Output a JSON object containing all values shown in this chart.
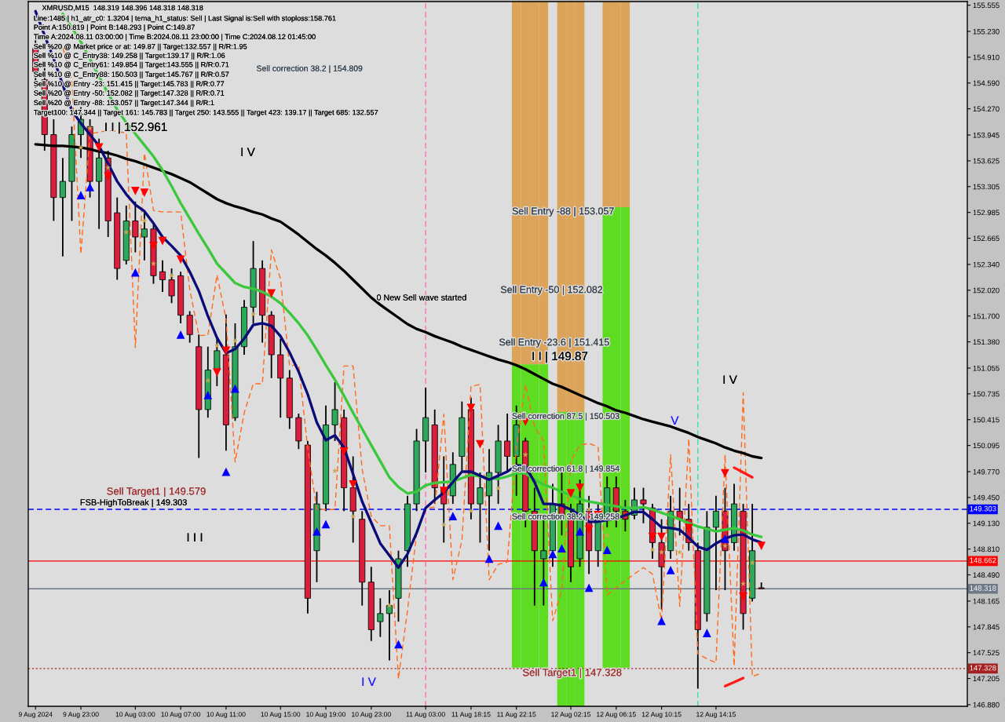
{
  "chart_data": {
    "type": "candlestick",
    "title": "XMRUSD,M15  148.319 148.396 148.318 148.318",
    "categories": [
      "9 Aug 2024",
      null,
      null,
      null,
      null,
      "9 Aug 23:00",
      null,
      null,
      null,
      null,
      null,
      "10 Aug 03:00",
      null,
      null,
      null,
      null,
      "10 Aug 07:00",
      null,
      null,
      null,
      null,
      "10 Aug 11:00",
      null,
      null,
      null,
      null,
      null,
      "10 Aug 15:00",
      null,
      null,
      null,
      null,
      "10 Aug 19:00",
      null,
      null,
      null,
      null,
      "10 Aug 23:00",
      null,
      null,
      null,
      null,
      null,
      "11 Aug 03:00",
      null,
      null,
      null,
      null,
      "11 Aug 18:15",
      null,
      null,
      null,
      null,
      "11 Aug 22:15",
      null,
      null,
      null,
      null,
      null,
      "12 Aug 02:15",
      null,
      null,
      null,
      null,
      "12 Aug 06:15",
      null,
      null,
      null,
      null,
      "12 Aug 10:15",
      null,
      null,
      null,
      null,
      null,
      "12 Aug 14:15",
      null,
      null,
      null,
      null,
      null
    ],
    "ohlc": [
      [
        155.02,
        155.21,
        154.53,
        154.73
      ],
      [
        154.63,
        154.82,
        153.75,
        153.95
      ],
      [
        153.95,
        154.14,
        152.88,
        153.17
      ],
      [
        153.17,
        153.66,
        152.44,
        153.37
      ],
      [
        153.37,
        154.05,
        152.88,
        153.95
      ],
      [
        153.95,
        154.29,
        153.66,
        154.14
      ],
      [
        154.05,
        154.14,
        153.17,
        153.37
      ],
      [
        153.37,
        153.9,
        152.78,
        153.66
      ],
      [
        153.66,
        153.75,
        152.68,
        152.88
      ],
      [
        152.98,
        153.17,
        152.15,
        152.29
      ],
      [
        152.39,
        153.07,
        152.34,
        152.88
      ],
      [
        152.88,
        153.12,
        152.49,
        152.68
      ],
      [
        152.68,
        152.98,
        152.39,
        152.78
      ],
      [
        152.78,
        152.83,
        152.1,
        152.2
      ],
      [
        152.25,
        152.39,
        152.0,
        152.15
      ],
      [
        152.15,
        152.29,
        151.86,
        151.95
      ],
      [
        152.2,
        152.25,
        151.61,
        151.71
      ],
      [
        151.71,
        151.76,
        151.37,
        151.47
      ],
      [
        151.32,
        151.47,
        149.94,
        150.54
      ],
      [
        150.54,
        151.32,
        150.44,
        151.03
      ],
      [
        151.03,
        151.42,
        150.83,
        151.27
      ],
      [
        151.22,
        151.72,
        150.03,
        150.35
      ],
      [
        150.44,
        151.61,
        150.4,
        151.32
      ],
      [
        151.32,
        151.9,
        151.22,
        151.81
      ],
      [
        151.81,
        152.63,
        151.61,
        152.29
      ],
      [
        152.29,
        152.39,
        151.37,
        151.71
      ],
      [
        151.71,
        151.76,
        150.93,
        151.22
      ],
      [
        151.22,
        151.42,
        150.44,
        150.93
      ],
      [
        150.93,
        151.03,
        150.3,
        150.44
      ],
      [
        150.44,
        150.49,
        150.05,
        150.15
      ],
      [
        150.1,
        150.15,
        148.01,
        148.2
      ],
      [
        148.79,
        149.52,
        148.4,
        149.37
      ],
      [
        149.37,
        150.59,
        149.28,
        150.35
      ],
      [
        150.35,
        150.88,
        150.15,
        150.54
      ],
      [
        150.44,
        150.54,
        149.28,
        149.57
      ],
      [
        149.57,
        149.96,
        148.89,
        149.28
      ],
      [
        149.18,
        149.28,
        148.11,
        148.4
      ],
      [
        148.4,
        148.59,
        147.67,
        147.81
      ],
      [
        147.91,
        148.2,
        147.72,
        148.01
      ],
      [
        148.01,
        148.3,
        147.43,
        148.11
      ],
      [
        148.2,
        148.79,
        147.91,
        148.69
      ],
      [
        148.79,
        149.47,
        148.59,
        149.37
      ],
      [
        149.37,
        150.3,
        149.28,
        150.15
      ],
      [
        150.15,
        150.81,
        149.76,
        150.44
      ],
      [
        150.35,
        150.54,
        149.37,
        149.57
      ],
      [
        149.57,
        149.96,
        148.89,
        149.37
      ],
      [
        149.47,
        150.01,
        149.37,
        149.86
      ],
      [
        149.96,
        150.64,
        149.76,
        150.44
      ],
      [
        150.54,
        150.69,
        149.18,
        149.37
      ],
      [
        149.37,
        149.76,
        148.89,
        149.57
      ],
      [
        149.47,
        150.05,
        148.79,
        149.76
      ],
      [
        149.76,
        150.35,
        149.37,
        150.15
      ],
      [
        150.15,
        150.49,
        149.76,
        149.96
      ],
      [
        149.96,
        150.59,
        149.47,
        150.35
      ],
      [
        150.15,
        150.19,
        149.08,
        149.28
      ],
      [
        149.28,
        149.57,
        148.11,
        148.79
      ],
      [
        148.69,
        149.18,
        148.11,
        148.79
      ],
      [
        148.79,
        149.62,
        148.59,
        149.37
      ],
      [
        149.37,
        149.76,
        148.98,
        149.18
      ],
      [
        149.18,
        149.37,
        148.4,
        148.59
      ],
      [
        148.69,
        149.67,
        148.59,
        149.37
      ],
      [
        149.28,
        149.47,
        148.5,
        148.79
      ],
      [
        148.79,
        149.37,
        148.59,
        149.18
      ],
      [
        149.18,
        149.71,
        149.08,
        149.57
      ],
      [
        149.57,
        149.71,
        149.08,
        149.28
      ],
      [
        149.28,
        149.42,
        149.03,
        149.18
      ],
      [
        149.23,
        149.57,
        149.18,
        149.42
      ],
      [
        149.42,
        149.57,
        149.13,
        149.37
      ],
      [
        149.32,
        149.37,
        148.69,
        148.89
      ],
      [
        148.89,
        149.18,
        148.06,
        148.59
      ],
      [
        148.79,
        149.47,
        148.69,
        149.28
      ],
      [
        149.28,
        149.57,
        148.98,
        149.18
      ],
      [
        149.18,
        149.37,
        148.79,
        148.89
      ],
      [
        148.79,
        148.89,
        147.08,
        147.81
      ],
      [
        148.01,
        149.28,
        147.91,
        149.08
      ],
      [
        149.08,
        149.47,
        148.3,
        149.28
      ],
      [
        149.28,
        149.57,
        148.3,
        148.79
      ],
      [
        148.89,
        149.62,
        148.79,
        149.37
      ],
      [
        149.28,
        149.37,
        147.81,
        148.01
      ],
      [
        148.2,
        149.37,
        148.16,
        148.79
      ],
      [
        148.319,
        148.396,
        148.318,
        148.318
      ]
    ],
    "colors": [
      "#dc1e3c",
      "#dc1e3c",
      "#dc1e3c",
      "#2ea85a",
      "#2ea85a",
      "#2ea85a",
      "#dc1e3c",
      "#2ea85a",
      "#dc1e3c",
      "#dc1e3c",
      "#2ea85a",
      "#dc1e3c",
      "#2ea85a",
      "#dc1e3c",
      "#dc1e3c",
      "#dc1e3c",
      "#dc1e3c",
      "#dc1e3c",
      "#dc1e3c",
      "#2ea85a",
      "#2ea85a",
      "#dc1e3c",
      "#2ea85a",
      "#2ea85a",
      "#2ea85a",
      "#dc1e3c",
      "#dc1e3c",
      "#dc1e3c",
      "#dc1e3c",
      "#dc1e3c",
      "#dc1e3c",
      "#2ea85a",
      "#2ea85a",
      "#2ea85a",
      "#dc1e3c",
      "#dc1e3c",
      "#dc1e3c",
      "#dc1e3c",
      "#2ea85a",
      "#2ea85a",
      "#2ea85a",
      "#2ea85a",
      "#2ea85a",
      "#2ea85a",
      "#dc1e3c",
      "#dc1e3c",
      "#2ea85a",
      "#2ea85a",
      "#dc1e3c",
      "#2ea85a",
      "#2ea85a",
      "#2ea85a",
      "#dc1e3c",
      "#2ea85a",
      "#dc1e3c",
      "#dc1e3c",
      "#2ea85a",
      "#2ea85a",
      "#dc1e3c",
      "#dc1e3c",
      "#2ea85a",
      "#dc1e3c",
      "#2ea85a",
      "#2ea85a",
      "#dc1e3c",
      "#dc1e3c",
      "#2ea85a",
      "#dc1e3c",
      "#dc1e3c",
      "#dc1e3c",
      "#2ea85a",
      "#dc1e3c",
      "#dc1e3c",
      "#dc1e3c",
      "#2ea85a",
      "#2ea85a",
      "#dc1e3c",
      "#2ea85a",
      "#dc1e3c",
      "#2ea85a",
      "#dc1e3c"
    ],
    "series": [
      {
        "type": "bar",
        "color": "#dca35b",
        "base": [
          null,
          null,
          null,
          null,
          null,
          null,
          null,
          null,
          null,
          null,
          null,
          null,
          null,
          null,
          null,
          null,
          null,
          null,
          null,
          null,
          null,
          null,
          null,
          null,
          null,
          null,
          null,
          null,
          null,
          null,
          null,
          null,
          null,
          null,
          null,
          null,
          null,
          null,
          null,
          null,
          null,
          null,
          null,
          null,
          null,
          null,
          null,
          null,
          null,
          null,
          null,
          null,
          null,
          151.1,
          151.1,
          151.1,
          151.1,
          null,
          150.51,
          150.51,
          150.51,
          null,
          null,
          153.05,
          153.05,
          153.05,
          null,
          null,
          null,
          null,
          null,
          null,
          null,
          null,
          null,
          null,
          null,
          null,
          null,
          null,
          null
        ],
        "values": [
          null,
          null,
          null,
          null,
          null,
          null,
          null,
          null,
          null,
          null,
          null,
          null,
          null,
          null,
          null,
          null,
          null,
          null,
          null,
          null,
          null,
          null,
          null,
          null,
          null,
          null,
          null,
          null,
          null,
          null,
          null,
          null,
          null,
          null,
          null,
          null,
          null,
          null,
          null,
          null,
          null,
          null,
          null,
          null,
          null,
          null,
          null,
          null,
          null,
          null,
          null,
          null,
          null,
          4.5,
          4.5,
          4.5,
          4.5,
          null,
          5.09,
          5.09,
          5.09,
          null,
          null,
          2.55,
          2.55,
          2.55,
          null,
          null,
          null,
          null,
          null,
          null,
          null,
          null,
          null,
          null,
          null,
          null,
          null,
          null,
          null
        ]
      },
      {
        "type": "bar",
        "color": "#5edc22",
        "base": [
          null,
          null,
          null,
          null,
          null,
          null,
          null,
          null,
          null,
          null,
          null,
          null,
          null,
          null,
          null,
          null,
          null,
          null,
          null,
          null,
          null,
          null,
          null,
          null,
          null,
          null,
          null,
          null,
          null,
          null,
          null,
          null,
          null,
          null,
          null,
          null,
          null,
          null,
          null,
          null,
          null,
          null,
          null,
          null,
          null,
          null,
          null,
          null,
          null,
          null,
          null,
          null,
          null,
          147.34,
          147.34,
          147.34,
          147.34,
          null,
          146.86,
          146.86,
          146.86,
          null,
          null,
          147.34,
          147.34,
          147.34,
          null,
          null,
          null,
          null,
          null,
          null,
          null,
          null,
          null,
          null,
          null,
          null,
          null,
          null,
          null
        ],
        "values": [
          null,
          null,
          null,
          null,
          null,
          null,
          null,
          null,
          null,
          null,
          null,
          null,
          null,
          null,
          null,
          null,
          null,
          null,
          null,
          null,
          null,
          null,
          null,
          null,
          null,
          null,
          null,
          null,
          null,
          null,
          null,
          null,
          null,
          null,
          null,
          null,
          null,
          null,
          null,
          null,
          null,
          null,
          null,
          null,
          null,
          null,
          null,
          null,
          null,
          null,
          null,
          null,
          null,
          3.76,
          3.76,
          3.76,
          3.76,
          null,
          3.65,
          3.65,
          3.65,
          null,
          null,
          5.71,
          5.71,
          5.71,
          null,
          null,
          null,
          null,
          null,
          null,
          null,
          null,
          null,
          null,
          null,
          null,
          null,
          null,
          null
        ]
      },
      {
        "type": "line",
        "color": "#ff6a1a",
        "line_style": "dashed",
        "values": [
          null,
          null,
          null,
          155.03,
          154.63,
          152.47,
          153.96,
          153.98,
          154.0,
          153.99,
          153.97,
          151.31,
          153.72,
          153.01,
          152.99,
          152.99,
          152.99,
          152.03,
          151.46,
          151.46,
          152.21,
          151.66,
          149.89,
          150.5,
          150.86,
          150.86,
          152.52,
          152.16,
          151.08,
          151.1,
          150.06,
          149.3,
          149.3,
          149.3,
          151.08,
          151.08,
          149.8,
          149.22,
          149.1,
          149.1,
          147.2,
          148.05,
          149.0,
          149.32,
          149.33,
          150.48,
          148.43,
          148.92,
          150.83,
          150.85,
          148.43,
          148.62,
          148.65,
          150.07,
          150.85,
          150.33,
          150.15,
          147.92,
          148.3,
          149.9,
          150.1,
          150.12,
          150.08,
          148.24,
          148.33,
          148.42,
          148.5,
          148.58,
          148.5,
          147.92,
          149.98,
          148.1,
          150.18,
          147.51,
          147.45,
          147.4,
          149.98,
          147.36,
          150.75,
          147.23,
          147.27
        ]
      },
      {
        "type": "line",
        "color": "#000000",
        "values": [
          153.83,
          153.82,
          153.81,
          153.81,
          153.8,
          153.79,
          153.77,
          153.74,
          153.72,
          153.69,
          153.65,
          153.62,
          153.58,
          153.54,
          153.5,
          153.46,
          153.41,
          153.36,
          153.29,
          153.22,
          153.15,
          153.1,
          153.06,
          153.03,
          152.99,
          152.96,
          152.91,
          152.87,
          152.79,
          152.71,
          152.62,
          152.53,
          152.45,
          152.36,
          152.26,
          152.15,
          152.04,
          151.93,
          151.84,
          151.76,
          151.68,
          151.6,
          151.54,
          151.5,
          151.45,
          151.41,
          151.37,
          151.32,
          151.28,
          151.24,
          151.2,
          151.16,
          151.13,
          151.09,
          151.04,
          150.98,
          150.92,
          150.86,
          150.82,
          150.77,
          150.72,
          150.67,
          150.62,
          150.58,
          150.53,
          150.5,
          150.46,
          150.42,
          150.39,
          150.36,
          150.33,
          150.29,
          150.25,
          150.2,
          150.16,
          150.12,
          150.07,
          150.03,
          150.0,
          149.96,
          149.94
        ]
      },
      {
        "type": "line",
        "color": "#3cc83c",
        "values": [
          null,
          null,
          null,
          155.45,
          155.28,
          155.1,
          154.89,
          154.67,
          154.46,
          154.26,
          154.1,
          153.96,
          153.82,
          153.68,
          153.51,
          153.31,
          153.1,
          152.91,
          152.72,
          152.54,
          152.35,
          152.23,
          152.11,
          152.06,
          152.04,
          152.0,
          151.94,
          151.86,
          151.74,
          151.61,
          151.46,
          151.28,
          151.09,
          150.91,
          150.71,
          150.5,
          150.3,
          150.1,
          149.9,
          149.7,
          149.58,
          149.5,
          149.52,
          149.6,
          149.63,
          149.64,
          149.65,
          149.69,
          149.73,
          149.71,
          149.69,
          149.68,
          149.71,
          149.75,
          149.75,
          149.67,
          149.61,
          149.57,
          149.52,
          149.48,
          149.43,
          149.4,
          149.38,
          149.36,
          149.34,
          149.32,
          149.32,
          149.33,
          149.3,
          149.26,
          149.22,
          149.18,
          149.13,
          149.09,
          149.06,
          149.03,
          149.05,
          149.07,
          149.04,
          148.99,
          148.96
        ]
      },
      {
        "type": "line",
        "color": "#0a0a78",
        "values": [
          155.48,
          155.18,
          154.89,
          154.57,
          154.25,
          154.09,
          153.95,
          153.81,
          153.59,
          153.37,
          153.21,
          153.08,
          153.0,
          152.85,
          152.68,
          152.57,
          152.45,
          152.25,
          152.01,
          151.7,
          151.43,
          151.24,
          151.29,
          151.42,
          151.59,
          151.61,
          151.58,
          151.45,
          151.25,
          151.01,
          150.73,
          150.38,
          150.16,
          150.22,
          150.07,
          149.74,
          149.4,
          149.14,
          148.88,
          148.73,
          148.58,
          148.75,
          149.01,
          149.32,
          149.42,
          149.51,
          149.64,
          149.77,
          149.77,
          149.72,
          149.67,
          149.72,
          149.77,
          149.85,
          149.84,
          149.64,
          149.37,
          149.37,
          149.35,
          149.3,
          149.23,
          149.15,
          149.15,
          149.17,
          149.19,
          149.23,
          149.27,
          149.27,
          149.18,
          149.08,
          149.07,
          149.05,
          148.95,
          148.84,
          148.8,
          148.88,
          148.94,
          148.98,
          148.99,
          148.93,
          148.89
        ]
      },
      {
        "type": "line",
        "color": "#ff1a1a",
        "values": [
          null,
          null,
          null,
          null,
          null,
          null,
          null,
          null,
          null,
          null,
          null,
          null,
          null,
          null,
          null,
          null,
          null,
          null,
          null,
          null,
          null,
          null,
          null,
          null,
          null,
          null,
          null,
          null,
          null,
          null,
          null,
          null,
          null,
          null,
          null,
          null,
          null,
          null,
          null,
          null,
          null,
          null,
          null,
          null,
          null,
          null,
          null,
          null,
          null,
          null,
          null,
          null,
          null,
          null,
          null,
          null,
          null,
          null,
          null,
          null,
          null,
          null,
          null,
          null,
          null,
          null,
          null,
          null,
          null,
          null,
          null,
          null,
          null,
          null,
          null,
          null,
          null,
          149.82,
          149.76,
          149.7,
          null
        ]
      },
      {
        "type": "line",
        "color": "#ff1a1a",
        "values": [
          null,
          null,
          null,
          null,
          null,
          null,
          null,
          null,
          null,
          null,
          null,
          null,
          null,
          null,
          null,
          null,
          null,
          null,
          null,
          null,
          null,
          null,
          null,
          null,
          null,
          null,
          null,
          null,
          null,
          null,
          null,
          null,
          null,
          null,
          null,
          null,
          null,
          null,
          null,
          null,
          null,
          null,
          null,
          null,
          null,
          null,
          null,
          null,
          null,
          null,
          null,
          null,
          null,
          null,
          null,
          null,
          null,
          null,
          null,
          null,
          null,
          null,
          null,
          null,
          null,
          null,
          null,
          null,
          null,
          null,
          null,
          null,
          null,
          null,
          null,
          null,
          147.11,
          147.16,
          147.21,
          null,
          null
        ]
      },
      {
        "type": "scatter",
        "color": "#ff0000",
        "marker": "triangle_down",
        "values": [
          null,
          null,
          null,
          null,
          null,
          null,
          null,
          153.79,
          153.43,
          null,
          null,
          153.25,
          153.23,
          152.57,
          152.63,
          null,
          152.4,
          null,
          null,
          null,
          151.0,
          151.27,
          null,
          null,
          null,
          null,
          151.98,
          null,
          null,
          null,
          null,
          null,
          null,
          null,
          150.02,
          149.61,
          null,
          null,
          null,
          null,
          null,
          null,
          null,
          null,
          null,
          149.53,
          null,
          null,
          150.56,
          150.11,
          null,
          null,
          null,
          null,
          150.39,
          null,
          null,
          null,
          null,
          149.5,
          149.57,
          149.05,
          149.23,
          null,
          null,
          null,
          null,
          null,
          148.96,
          148.96,
          null,
          null,
          149.07,
          null,
          null,
          null,
          149.75,
          null,
          148.22,
          null,
          148.85
        ]
      },
      {
        "type": "scatter",
        "color": "#0000ff",
        "marker": "triangle",
        "values": [
          null,
          null,
          null,
          null,
          null,
          153.2,
          153.3,
          null,
          null,
          null,
          null,
          152.24,
          null,
          null,
          null,
          null,
          151.47,
          null,
          null,
          150.72,
          null,
          149.77,
          150.8,
          null,
          null,
          null,
          null,
          null,
          null,
          null,
          null,
          149.03,
          149.12,
          null,
          null,
          null,
          null,
          null,
          null,
          null,
          147.63,
          null,
          null,
          null,
          null,
          null,
          149.22,
          null,
          null,
          null,
          148.69,
          149.1,
          null,
          null,
          null,
          null,
          148.4,
          148.75,
          148.82,
          null,
          149.03,
          148.33,
          null,
          148.8,
          null,
          null,
          null,
          null,
          null,
          147.92,
          148.55,
          null,
          null,
          null,
          147.77,
          null,
          148.94,
          null,
          null,
          null,
          null
        ]
      },
      {
        "type": "scatter",
        "color": "#c8a850",
        "marker": "star",
        "values": [
          null,
          null,
          null,
          null,
          null,
          153.79,
          154.03,
          null,
          153.54,
          null,
          152.74,
          null,
          152.88,
          152.35,
          null,
          152.2,
          null,
          null,
          null,
          150.9,
          151.33,
          null,
          151.39,
          null,
          151.72,
          null,
          null,
          null,
          null,
          null,
          null,
          null,
          null,
          149.78,
          null,
          149.21,
          null,
          null,
          null,
          148.11,
          null,
          null,
          null,
          null,
          null,
          149.11,
          null,
          null,
          149.28,
          null,
          null,
          149.56,
          null,
          null,
          149.98,
          null,
          null,
          null,
          null,
          null,
          null,
          149.3,
          null,
          148.98,
          null,
          null,
          null,
          null,
          148.8,
          148.77,
          null,
          148.77,
          null,
          null,
          null,
          null,
          148.85,
          null,
          148.38,
          148.64,
          null
        ]
      }
    ],
    "ylim": [
      146.86,
      155.6
    ],
    "yticks": [
      155.555,
      {
        "value": 155.23,
        "label": "155.230"
      },
      {
        "value": 154.91,
        "label": "154.910"
      },
      {
        "value": 154.59,
        "label": "154.590"
      },
      {
        "value": 154.27,
        "label": "154.270"
      },
      153.945,
      153.625,
      153.305,
      152.985,
      152.665,
      {
        "value": 152.34,
        "label": "152.340"
      },
      {
        "value": 152.02,
        "label": "152.020"
      },
      {
        "value": 151.7,
        "label": "151.700"
      },
      {
        "value": 151.38,
        "label": "151.380"
      },
      151.055,
      150.735,
      150.415,
      150.095,
      {
        "value": 149.77,
        "label": "149.770"
      },
      {
        "value": 149.45,
        "label": "149.450"
      },
      {
        "value": 149.13,
        "label": "149.130"
      },
      {
        "value": 148.81,
        "label": "148.810"
      },
      {
        "value": 148.49,
        "label": "148.490"
      },
      148.165,
      147.845,
      147.525,
      147.205,
      {
        "value": 146.88,
        "label": "146.880"
      }
    ],
    "ref_lines": [
      {
        "axis": "y",
        "value": 149.303,
        "label": "149.303",
        "color": "#0000ff",
        "line_style": "dashed"
      },
      {
        "axis": "y",
        "value": 148.662,
        "label": "148.662",
        "color": "#ff0000",
        "line_style": "solid"
      },
      {
        "axis": "y",
        "value": 148.318,
        "label": "148.318",
        "color": "#6e7886",
        "line_style": "solid"
      },
      {
        "axis": "y",
        "value": 147.328,
        "label": "147.328",
        "color": "#a52020",
        "line_style": "dotted"
      },
      {
        "axis": "x",
        "value": "11 Aug 03:00",
        "color": "#ff6eb4",
        "line_style": "dashed"
      }
    ],
    "annotations": [
      "Line:1485 | h1_atr_c0: 1.3204 | tema_h1_status: Sell | Last Signal is:Sell with stoploss:158.761",
      "Point A:150.819 | Point B:148.293 | Point C:149.87",
      "Time A:2024.08.11 03:00:00 | Time B:2024.08.11 23:00:00 | Time C:2024.08.12 01:45:00",
      "Sell %20 @ Market price or at: 149.87 || Target:132.557 || R/R:1.95",
      "Sell %10 @ C_Entry38: 149.258 || Target:139.17 || R/R:1.06",
      "Sell %10 @ C_Entry61: 149.854 || Target:143.555 || R/R:0.71",
      "Sell %10 @ C_Entry88: 150.503 || Target:145.767 || R/R:0.57",
      "Sell %10 @ Entry -23: 151.415 || Target:145.783 || R/R:0.77",
      "Sell %20 @ Entry -50: 152.082 || Target:147.328 || R/R:0.71",
      "Sell %20 @ Entry -88: 153.057 || Target:147.344 || R/R:1",
      "Target100: 147.344 || Target 161: 145.783 || Target 250: 143.555 || Target 423: 139.17 || Target 685: 132.557",
      "Sell correction 38.2 | 154.809",
      "I I | 152.961",
      "I V",
      "0 New Sell wave started",
      "Sell Entry -88 | 153.057",
      "Sell Entry -50 | 152.082",
      "Sell Entry -23.6 | 151.415",
      "I I | 149.87",
      "Sell correction 87.5 | 150.503",
      "Sell correction 61.8 | 149.854",
      "Sell correction 38.2 | 149.258",
      "V",
      "I V",
      "I I I",
      "I V",
      "Sell Target1 | 149.579",
      "FSB-HighToBreak | 149.303",
      "Sell Target1 | 147.328"
    ]
  }
}
